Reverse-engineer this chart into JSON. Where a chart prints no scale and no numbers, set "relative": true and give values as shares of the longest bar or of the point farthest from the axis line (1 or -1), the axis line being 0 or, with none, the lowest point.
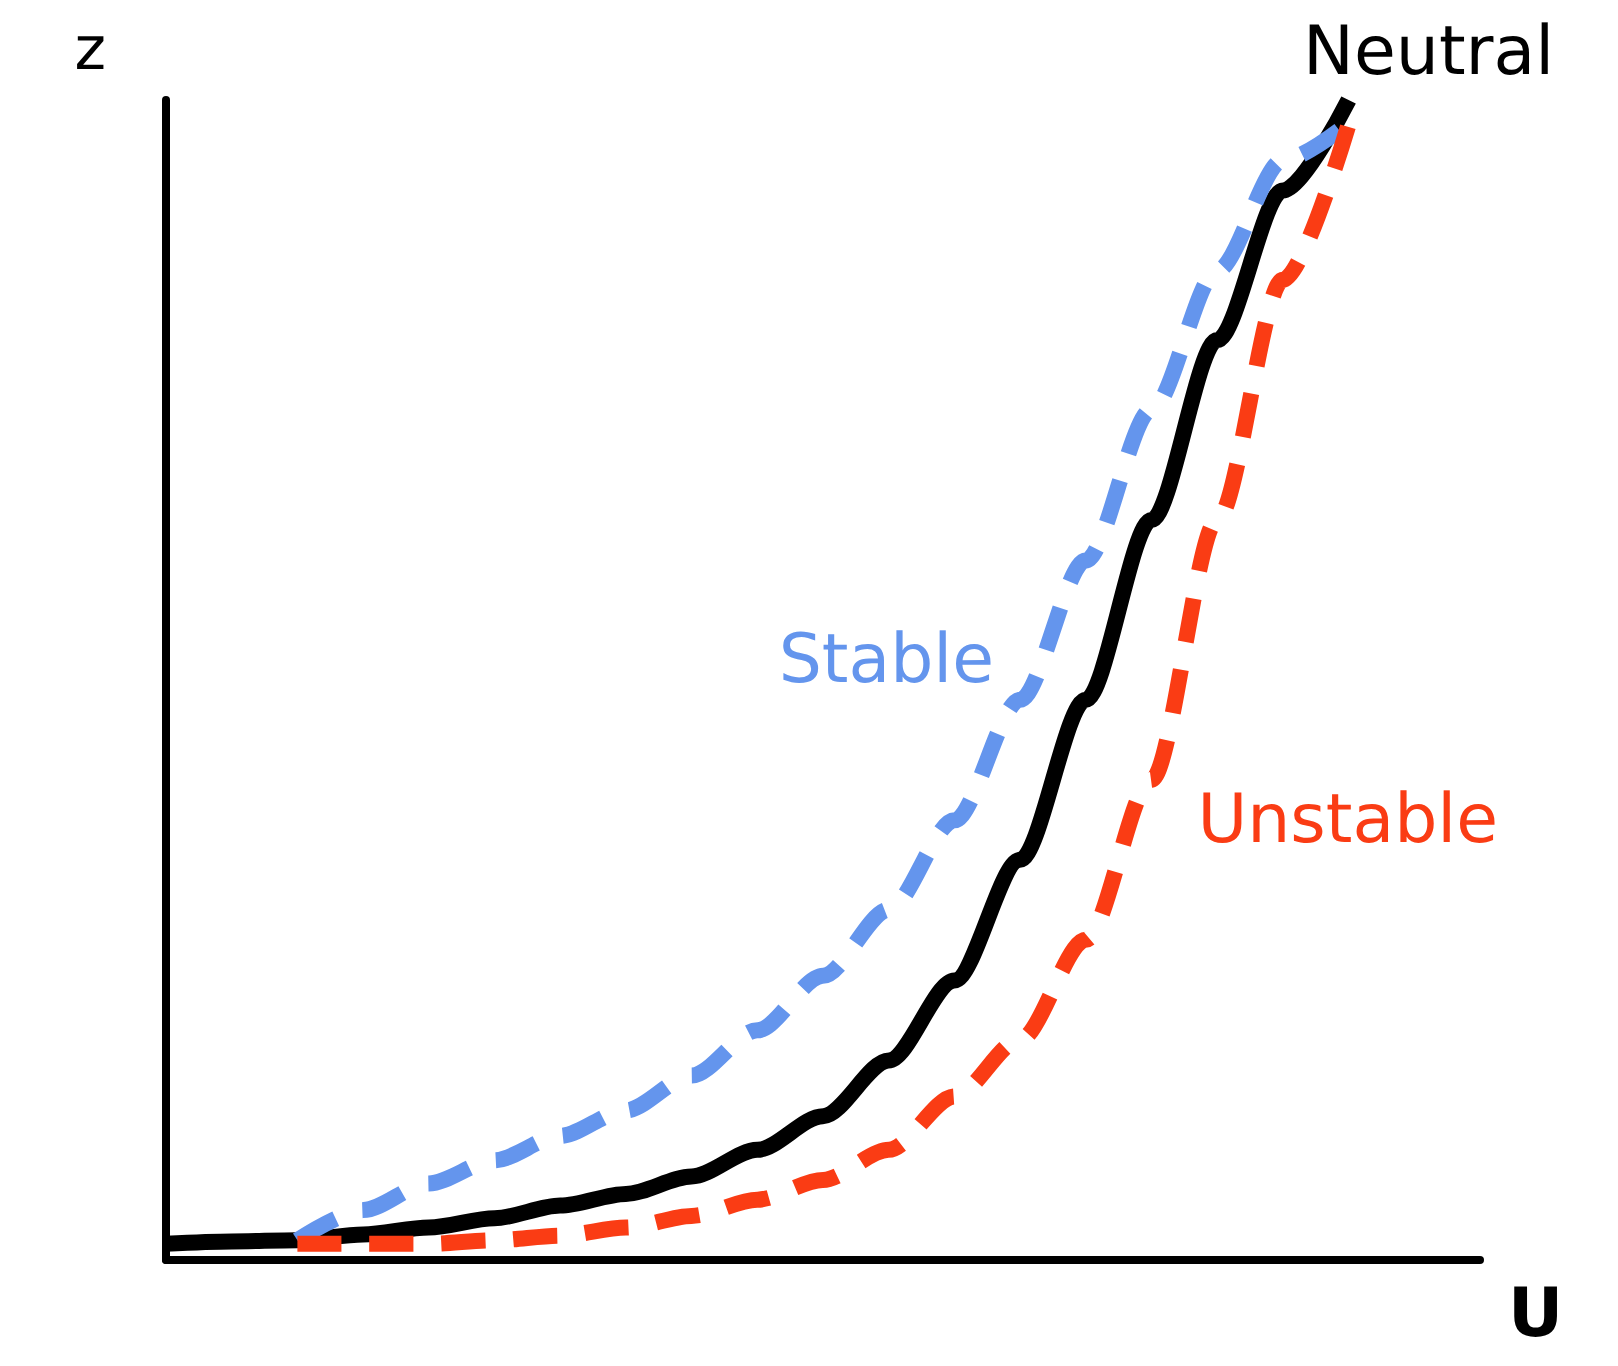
{
  "chart_data": {
    "type": "line",
    "relative": true,
    "xlabel": "U",
    "ylabel": "z",
    "legend": false,
    "grid": false,
    "marker": "none",
    "categories": [
      null,
      null,
      null,
      null,
      null,
      null,
      null,
      null,
      null,
      null,
      null,
      null,
      null,
      null,
      null,
      null,
      null,
      null,
      null,
      null,
      null
    ],
    "series": [
      {
        "name": "Neutral",
        "color": "#000000",
        "line_style": "solid",
        "values": [
          0.014,
          0.016,
          0.017,
          0.022,
          0.028,
          0.036,
          0.047,
          0.057,
          0.072,
          0.095,
          0.124,
          0.172,
          0.241,
          0.345,
          0.483,
          0.638,
          0.793,
          0.922,
          1,
          null,
          null
        ]
      },
      {
        "name": "Stable",
        "color": "#6495ed",
        "line_style": "dashed",
        "values": [
          null,
          null,
          0.017,
          0.043,
          0.066,
          0.086,
          0.107,
          0.129,
          0.159,
          0.198,
          0.245,
          0.302,
          0.379,
          0.483,
          0.603,
          0.733,
          0.853,
          0.948,
          0.98,
          null,
          null
        ]
      },
      {
        "name": "Unstable",
        "color": "#fa3c14",
        "line_style": "dashed",
        "values": [
          null,
          null,
          0.014,
          0.014,
          0.014,
          0.017,
          0.021,
          0.028,
          0.038,
          0.052,
          0.069,
          0.095,
          0.141,
          0.19,
          0.276,
          0.414,
          0.638,
          0.845,
          0.979,
          null,
          null
        ]
      }
    ]
  }
}
